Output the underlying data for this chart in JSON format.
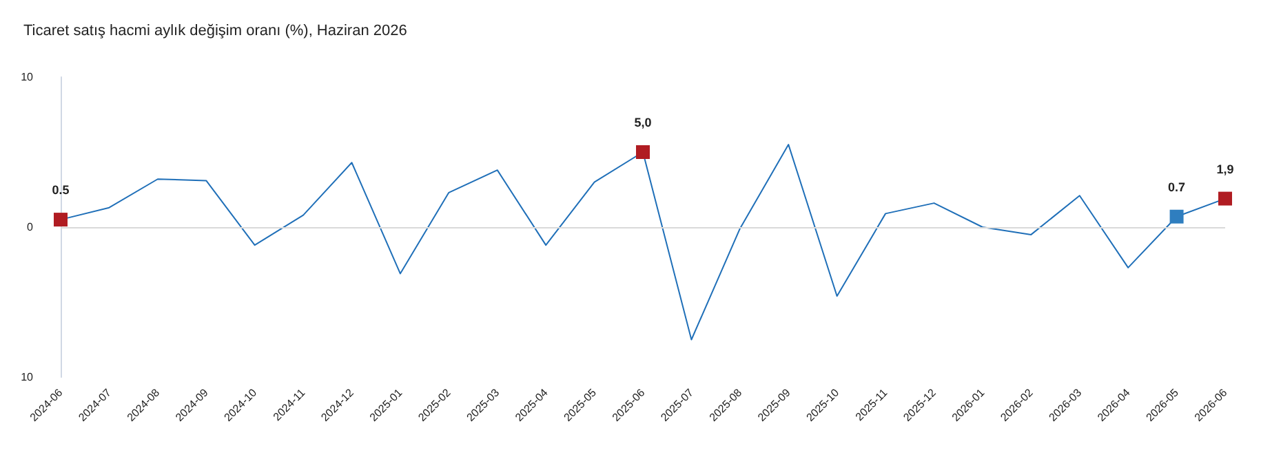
{
  "chart_data": {
    "type": "line",
    "title": "Ticaret satış hacmi aylık değişim oranı (%), Haziran 2026",
    "categories": [
      "2024-06",
      "2024-07",
      "2024-08",
      "2024-09",
      "2024-10",
      "2024-11",
      "2024-12",
      "2025-01",
      "2025-02",
      "2025-03",
      "2025-04",
      "2025-05",
      "2025-06",
      "2025-07",
      "2025-08",
      "2025-09",
      "2025-10",
      "2025-11",
      "2025-12",
      "2026-01",
      "2026-02",
      "2026-03",
      "2026-04",
      "2026-05",
      "2026-06"
    ],
    "series": [
      {
        "color": "#1f6fb8",
        "marker": "none",
        "values": [
          0.5,
          1.3,
          3.2,
          3.1,
          -1.2,
          0.8,
          4.3,
          -3.1,
          2.3,
          3.8,
          -1.2,
          3.0,
          5.0,
          -7.5,
          -0.1,
          5.5,
          -4.6,
          0.9,
          1.6,
          0.0,
          -0.5,
          2.1,
          -2.7,
          0.7,
          1.9
        ]
      },
      {
        "type": "scatter",
        "marker": "square",
        "values": [
          0.5,
          null,
          null,
          null,
          null,
          null,
          null,
          null,
          null,
          null,
          null,
          null,
          5.0,
          null,
          null,
          null,
          null,
          null,
          null,
          null,
          null,
          null,
          null,
          0.7,
          1.9
        ],
        "colors": [
          "#b01c22",
          null,
          null,
          null,
          null,
          null,
          null,
          null,
          null,
          null,
          null,
          null,
          "#b01c22",
          null,
          null,
          null,
          null,
          null,
          null,
          null,
          null,
          null,
          null,
          "#2f7ebf",
          "#b01c22"
        ],
        "value_labels": [
          "0.5",
          null,
          null,
          null,
          null,
          null,
          null,
          null,
          null,
          null,
          null,
          null,
          "5,0",
          null,
          null,
          null,
          null,
          null,
          null,
          null,
          null,
          null,
          null,
          "0.7",
          "1,9"
        ]
      }
    ],
    "ylim": [
      -10,
      10
    ],
    "yticks": [
      {
        "value": -10,
        "label": "10"
      },
      0,
      10
    ],
    "ref_lines": [
      {
        "axis": "y",
        "value": 0,
        "color": "#d9d9d9"
      }
    ],
    "line_style": "solid",
    "grid": false
  }
}
